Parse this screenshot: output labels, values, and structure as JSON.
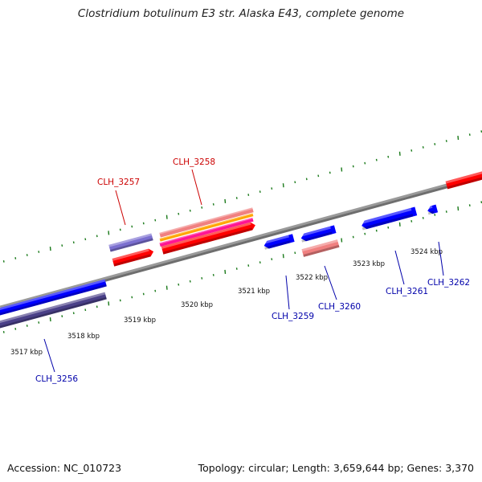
{
  "title": "Clostridium botulinum E3 str. Alaska E43, complete genome",
  "footer": {
    "accession_label": "Accession: NC_010723",
    "summary": "Topology: circular; Length: 3,659,644 bp; Genes: 3,370"
  },
  "colors": {
    "backbone": "#8a8a8a",
    "tick": "#1a7a1a",
    "forward_gene": "#ff0000",
    "reverse_gene": "#0000ff",
    "forward_label": "#cc0000",
    "reverse_label": "#0000aa",
    "pink": "#f08080",
    "purple": "#7b6fd0",
    "darkpurple": "#4a4088",
    "orange": "#ffa500",
    "magenta": "#ff1493"
  },
  "scale_labels": [
    "3517 kbp",
    "3518 kbp",
    "3519 kbp",
    "3520 kbp",
    "3521 kbp",
    "3522 kbp",
    "3523 kbp",
    "3524 kbp"
  ],
  "gene_labels": [
    {
      "text": "CLH_3256",
      "strand": "reverse"
    },
    {
      "text": "CLH_3257",
      "strand": "forward"
    },
    {
      "text": "CLH_3258",
      "strand": "forward"
    },
    {
      "text": "CLH_3259",
      "strand": "reverse"
    },
    {
      "text": "CLH_3260",
      "strand": "reverse"
    },
    {
      "text": "CLH_3261",
      "strand": "reverse"
    },
    {
      "text": "CLH_3262",
      "strand": "reverse"
    }
  ]
}
